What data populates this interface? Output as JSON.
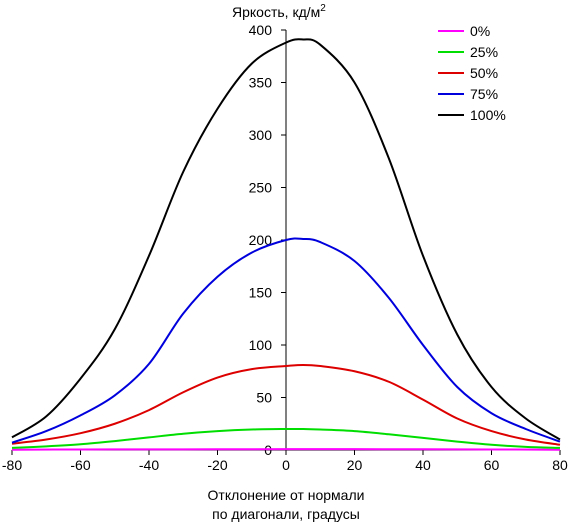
{
  "chart_data": {
    "type": "line",
    "ylabel": "Яркость, кд/м",
    "ylabel_sup": "2",
    "xlabel_line1": "Отклонение от нормали",
    "xlabel_line2": "по диагонали, градусы",
    "xlim": [
      -80,
      80
    ],
    "ylim": [
      0,
      400
    ],
    "xticks": [
      -80,
      -60,
      -40,
      -20,
      0,
      20,
      40,
      60,
      80
    ],
    "yticks": [
      0,
      50,
      100,
      150,
      200,
      250,
      300,
      350,
      400
    ],
    "grid": false,
    "legend_position": "top-right",
    "series": [
      {
        "name": "0%",
        "color": "#ff00ff",
        "x": [
          -80,
          -60,
          -40,
          -20,
          0,
          20,
          40,
          60,
          80
        ],
        "y": [
          0.3,
          0.5,
          0.6,
          0.7,
          0.8,
          0.8,
          0.7,
          0.5,
          0.3
        ]
      },
      {
        "name": "25%",
        "color": "#00dd00",
        "x": [
          -80,
          -70,
          -60,
          -50,
          -40,
          -30,
          -20,
          -10,
          0,
          5,
          10,
          20,
          30,
          40,
          50,
          60,
          70,
          80
        ],
        "y": [
          2,
          3.5,
          5.5,
          8.5,
          12,
          15.5,
          18,
          19.5,
          20,
          20,
          19.5,
          18,
          15,
          11.5,
          8,
          5,
          3,
          2
        ]
      },
      {
        "name": "50%",
        "color": "#dd0000",
        "x": [
          -80,
          -70,
          -60,
          -50,
          -40,
          -30,
          -20,
          -10,
          0,
          5,
          10,
          20,
          30,
          40,
          50,
          60,
          70,
          80
        ],
        "y": [
          6,
          10,
          16,
          25,
          38,
          55,
          69,
          77,
          80,
          81,
          80,
          75,
          65,
          48,
          30,
          18,
          10,
          5
        ]
      },
      {
        "name": "75%",
        "color": "#0000dd",
        "x": [
          -80,
          -70,
          -60,
          -50,
          -40,
          -30,
          -20,
          -10,
          0,
          5,
          10,
          20,
          30,
          40,
          50,
          60,
          70,
          80
        ],
        "y": [
          7,
          18,
          33,
          52,
          82,
          130,
          165,
          188,
          200,
          201,
          198,
          180,
          145,
          100,
          60,
          35,
          20,
          8
        ]
      },
      {
        "name": "100%",
        "color": "#000000",
        "x": [
          -80,
          -70,
          -60,
          -50,
          -40,
          -30,
          -20,
          -10,
          0,
          5,
          10,
          20,
          30,
          40,
          50,
          60,
          70,
          80
        ],
        "y": [
          12,
          32,
          68,
          115,
          185,
          265,
          325,
          368,
          388,
          391,
          386,
          350,
          278,
          185,
          110,
          60,
          30,
          10
        ]
      }
    ]
  }
}
